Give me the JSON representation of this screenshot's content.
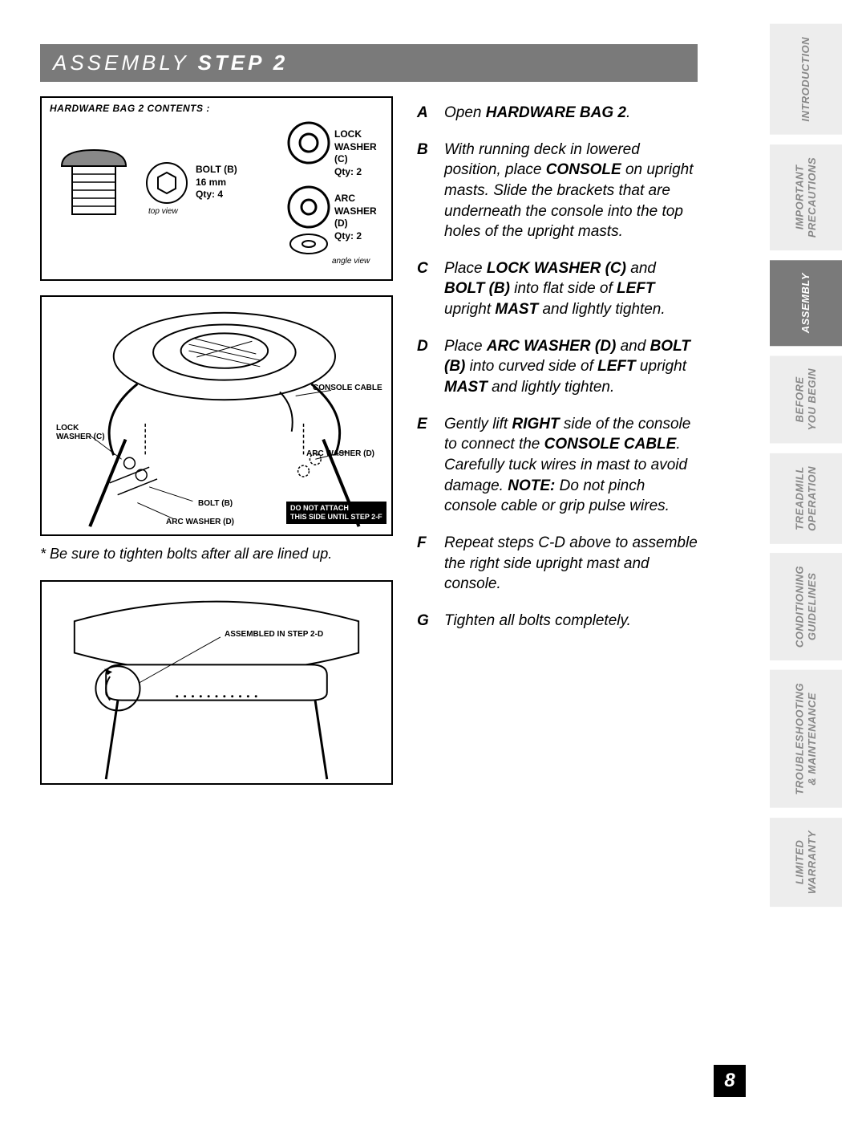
{
  "header": {
    "prefix": "ASSEMBLY ",
    "bold": "STEP 2"
  },
  "hardware_box": {
    "title": "HARDWARE BAG 2 CONTENTS :",
    "bolt": {
      "name": "BOLT (B)",
      "spec": "16 mm",
      "qty": "Qty: 4",
      "topview": "top view"
    },
    "lock_washer": {
      "name": "LOCK WASHER (C)",
      "qty": "Qty: 2"
    },
    "arc_washer": {
      "name": "ARC WASHER (D)",
      "qty": "Qty: 2",
      "angle": "angle view"
    }
  },
  "diagram1": {
    "console_cable": "CONSOLE CABLE",
    "lock_washer": "LOCK\nWASHER (C)",
    "arc_washer_r": "ARC WASHER (D)",
    "bolt": "BOLT (B)",
    "arc_washer_l": "ARC WASHER (D)",
    "warn1": "DO NOT ATTACH",
    "warn2": "THIS SIDE UNTIL STEP 2-F"
  },
  "note": "* Be sure to tighten bolts after all are lined up.",
  "diagram2": {
    "assembled": "ASSEMBLED IN STEP 2-D"
  },
  "steps": [
    {
      "letter": "A",
      "html": "Open <strong>HARDWARE BAG 2</strong>."
    },
    {
      "letter": "B",
      "html": "With running deck in lowered position, place <strong>CONSOLE</strong> on upright masts. Slide the brackets that are underneath the console into the top holes of the upright masts."
    },
    {
      "letter": "C",
      "html": "Place <strong>LOCK WASHER (C)</strong> and <strong>BOLT (B)</strong> into flat side of <strong>LEFT</strong> upright <strong>MAST</strong> and lightly tighten."
    },
    {
      "letter": "D",
      "html": "Place <strong>ARC WASHER (D)</strong> and <strong>BOLT (B)</strong> into curved side of <strong>LEFT</strong> upright <strong>MAST</strong> and lightly tighten."
    },
    {
      "letter": "E",
      "html": "Gently lift <strong>RIGHT</strong> side of the console to connect the <strong>CONSOLE CABLE</strong>. Carefully tuck wires in mast to avoid damage. <strong>NOTE:</strong> Do not pinch console cable or grip pulse wires."
    },
    {
      "letter": "F",
      "html": "Repeat steps C-D above to assemble the right side upright mast and console."
    },
    {
      "letter": "G",
      "html": "Tighten all bolts completely."
    }
  ],
  "tabs": [
    {
      "label": "INTRODUCTION",
      "active": false
    },
    {
      "label": "IMPORTANT\nPRECAUTIONS",
      "active": false
    },
    {
      "label": "ASSEMBLY",
      "active": true
    },
    {
      "label": "BEFORE\nYOU BEGIN",
      "active": false
    },
    {
      "label": "TREADMILL\nOPERATION",
      "active": false
    },
    {
      "label": "CONDITIONING\nGUIDELINES",
      "active": false
    },
    {
      "label": "TROUBLESHOOTING\n& MAINTENANCE",
      "active": false
    },
    {
      "label": "LIMITED\nWARRANTY",
      "active": false
    }
  ],
  "page_number": "8",
  "colors": {
    "header_bg": "#7a7a7a",
    "tab_bg": "#ededed",
    "tab_fg": "#888888",
    "tab_active_bg": "#7a7a7a",
    "black": "#000000",
    "white": "#ffffff"
  }
}
